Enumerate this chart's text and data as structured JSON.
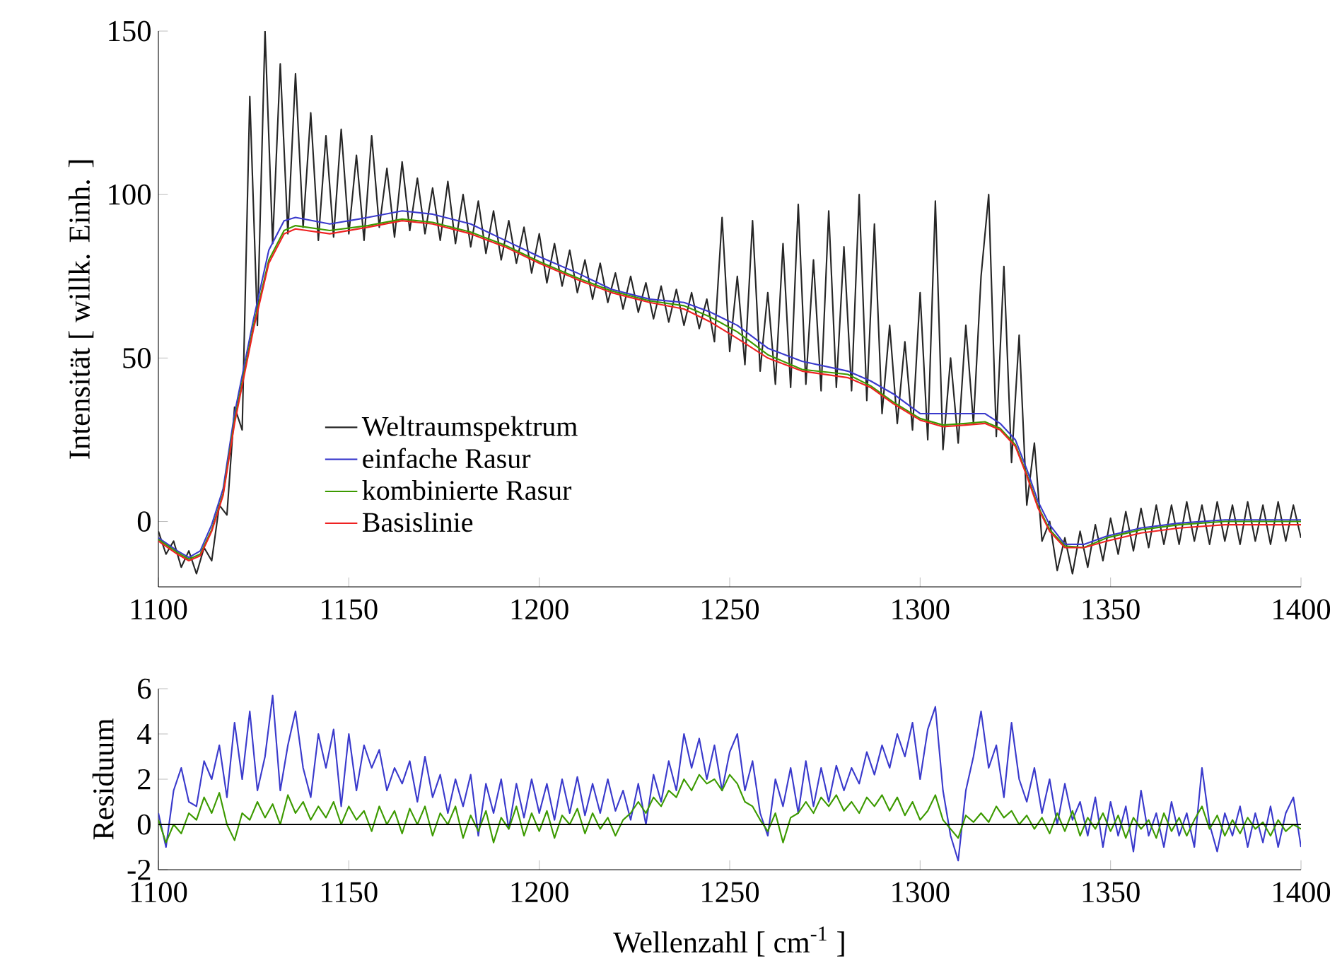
{
  "chart_data": [
    {
      "type": "line",
      "ylabel": "Intensität [ willk. Einh. ]",
      "xlim": [
        1100,
        1400
      ],
      "xticks": [
        1100,
        1150,
        1200,
        1250,
        1300,
        1350,
        1400
      ],
      "ylim": [
        -20,
        150
      ],
      "yticks": [
        0,
        50,
        100,
        150
      ],
      "legend": "left",
      "series": [
        {
          "name": "Weltraumspektrum",
          "color": "#262626",
          "x": [
            1100,
            1102,
            1104,
            1106,
            1108,
            1110,
            1112,
            1114,
            1116,
            1118,
            1120,
            1122,
            1124,
            1126,
            1128,
            1130,
            1132,
            1134,
            1136,
            1138,
            1140,
            1142,
            1144,
            1146,
            1148,
            1150,
            1152,
            1154,
            1156,
            1158,
            1160,
            1162,
            1164,
            1166,
            1168,
            1170,
            1172,
            1174,
            1176,
            1178,
            1180,
            1182,
            1184,
            1186,
            1188,
            1190,
            1192,
            1194,
            1196,
            1198,
            1200,
            1202,
            1204,
            1206,
            1208,
            1210,
            1212,
            1214,
            1216,
            1218,
            1220,
            1222,
            1224,
            1226,
            1228,
            1230,
            1232,
            1234,
            1236,
            1238,
            1240,
            1242,
            1244,
            1246,
            1248,
            1250,
            1252,
            1254,
            1256,
            1258,
            1260,
            1262,
            1264,
            1266,
            1268,
            1270,
            1272,
            1274,
            1276,
            1278,
            1280,
            1282,
            1284,
            1286,
            1288,
            1290,
            1292,
            1294,
            1296,
            1298,
            1300,
            1302,
            1304,
            1306,
            1308,
            1310,
            1312,
            1314,
            1316,
            1318,
            1320,
            1322,
            1324,
            1326,
            1328,
            1330,
            1332,
            1334,
            1336,
            1338,
            1340,
            1342,
            1344,
            1346,
            1348,
            1350,
            1352,
            1354,
            1356,
            1358,
            1360,
            1362,
            1364,
            1366,
            1368,
            1370,
            1372,
            1374,
            1376,
            1378,
            1380,
            1382,
            1384,
            1386,
            1388,
            1390,
            1392,
            1394,
            1396,
            1398,
            1400
          ],
          "values": [
            -3,
            -10,
            -6,
            -14,
            -9,
            -16,
            -8,
            -12,
            5,
            2,
            35,
            28,
            130,
            60,
            150,
            85,
            140,
            88,
            137,
            90,
            125,
            86,
            118,
            87,
            120,
            88,
            112,
            86,
            118,
            90,
            108,
            87,
            110,
            89,
            105,
            88,
            102,
            86,
            104,
            85,
            100,
            84,
            98,
            82,
            95,
            80,
            92,
            79,
            90,
            76,
            88,
            73,
            85,
            72,
            83,
            70,
            80,
            68,
            79,
            67,
            76,
            65,
            75,
            64,
            73,
            62,
            72,
            61,
            71,
            60,
            70,
            59,
            68,
            55,
            93,
            52,
            75,
            48,
            92,
            46,
            70,
            42,
            85,
            41,
            97,
            42,
            80,
            40,
            95,
            41,
            84,
            40,
            100,
            37,
            91,
            33,
            60,
            30,
            55,
            28,
            70,
            25,
            98,
            22,
            50,
            24,
            60,
            30,
            75,
            100,
            26,
            78,
            18,
            57,
            5,
            24,
            -6,
            0,
            -15,
            -5,
            -16,
            -3,
            -14,
            -1,
            -12,
            1,
            -10,
            3,
            -9,
            4,
            -8,
            5,
            -7,
            5,
            -7,
            6,
            -6,
            5,
            -7,
            6,
            -6,
            5,
            -7,
            6,
            -6,
            5,
            -7,
            6,
            -6,
            5,
            -5
          ]
        },
        {
          "name": "einfache Rasur",
          "color": "#3a3acc",
          "x": [
            1100,
            1105,
            1108,
            1111,
            1114,
            1117,
            1120,
            1125,
            1129,
            1133,
            1136,
            1145,
            1155,
            1164,
            1172,
            1182,
            1191,
            1200,
            1210,
            1219,
            1229,
            1238,
            1245,
            1252,
            1260,
            1269,
            1281,
            1287,
            1293,
            1300,
            1306,
            1312,
            1317,
            1321,
            1325,
            1328,
            1331,
            1334,
            1338,
            1343,
            1349,
            1358,
            1368,
            1380,
            1390,
            1400
          ],
          "values": [
            -5,
            -9,
            -11,
            -9,
            -1,
            10,
            33,
            62,
            83,
            92,
            93,
            91,
            93,
            95,
            94,
            91,
            86,
            81,
            76,
            71,
            68,
            67,
            64,
            60,
            53,
            49,
            46,
            43,
            39,
            33,
            33,
            33,
            33,
            30,
            25,
            16,
            6,
            -1,
            -7,
            -7,
            -4.5,
            -2,
            -0.5,
            0.5,
            0.5,
            0.5
          ]
        },
        {
          "name": "kombinierte Rasur",
          "color": "#3c9a00",
          "x": [
            1100,
            1105,
            1108,
            1111,
            1114,
            1117,
            1120,
            1125,
            1129,
            1133,
            1136,
            1145,
            1155,
            1164,
            1172,
            1182,
            1191,
            1200,
            1210,
            1219,
            1229,
            1238,
            1245,
            1252,
            1260,
            1269,
            1281,
            1287,
            1293,
            1300,
            1306,
            1312,
            1317,
            1321,
            1325,
            1328,
            1331,
            1334,
            1338,
            1343,
            1349,
            1358,
            1368,
            1380,
            1390,
            1400
          ],
          "values": [
            -5.5,
            -9.5,
            -11.5,
            -10,
            -2.5,
            8.5,
            31,
            60,
            80,
            89,
            90.5,
            89,
            90.5,
            92.5,
            91.5,
            88.5,
            84.5,
            79.5,
            74.5,
            70.5,
            67.5,
            66,
            62.5,
            58,
            51,
            46.5,
            45,
            41.5,
            36.5,
            31.5,
            29.5,
            30,
            30.5,
            28.5,
            23.5,
            14.5,
            4.5,
            -2.5,
            -7.5,
            -8,
            -5,
            -2.5,
            -1,
            0,
            0,
            0
          ]
        },
        {
          "name": "Basislinie",
          "color": "#ee2222",
          "x": [
            1100,
            1105,
            1108,
            1111,
            1114,
            1117,
            1120,
            1125,
            1129,
            1133,
            1136,
            1145,
            1155,
            1164,
            1172,
            1182,
            1191,
            1200,
            1210,
            1219,
            1229,
            1238,
            1245,
            1252,
            1260,
            1269,
            1281,
            1287,
            1293,
            1300,
            1306,
            1312,
            1317,
            1321,
            1325,
            1328,
            1331,
            1334,
            1338,
            1343,
            1349,
            1358,
            1368,
            1380,
            1390,
            1400
          ],
          "values": [
            -6,
            -10,
            -12,
            -10.5,
            -3,
            8,
            30,
            59,
            79,
            88,
            89.5,
            88,
            90,
            92,
            91,
            88,
            84,
            79,
            74,
            70,
            67,
            65,
            61,
            56,
            50,
            46,
            44,
            41,
            36,
            31,
            29,
            29.5,
            30,
            28,
            23,
            14,
            4,
            -3,
            -8,
            -8,
            -6,
            -3.5,
            -2,
            -1,
            -1,
            -1
          ]
        }
      ]
    },
    {
      "type": "line",
      "xlabel": "Wellenzahl [ cm$^{-1}$ ]",
      "ylabel": "Residuum",
      "xlim": [
        1100,
        1400
      ],
      "xticks": [
        1100,
        1150,
        1200,
        1250,
        1300,
        1350,
        1400
      ],
      "ylim": [
        -2,
        6
      ],
      "yticks": [
        -2,
        0,
        2,
        4,
        6
      ],
      "ref_lines": [
        {
          "axis": "y",
          "value": 0,
          "color": "#000000"
        }
      ],
      "x": [
        1100,
        1102,
        1104,
        1106,
        1108,
        1110,
        1112,
        1114,
        1116,
        1118,
        1120,
        1122,
        1124,
        1126,
        1128,
        1130,
        1132,
        1134,
        1136,
        1138,
        1140,
        1142,
        1144,
        1146,
        1148,
        1150,
        1152,
        1154,
        1156,
        1158,
        1160,
        1162,
        1164,
        1166,
        1168,
        1170,
        1172,
        1174,
        1176,
        1178,
        1180,
        1182,
        1184,
        1186,
        1188,
        1190,
        1192,
        1194,
        1196,
        1198,
        1200,
        1202,
        1204,
        1206,
        1208,
        1210,
        1212,
        1214,
        1216,
        1218,
        1220,
        1222,
        1224,
        1226,
        1228,
        1230,
        1232,
        1234,
        1236,
        1238,
        1240,
        1242,
        1244,
        1246,
        1248,
        1250,
        1252,
        1254,
        1256,
        1258,
        1260,
        1262,
        1264,
        1266,
        1268,
        1270,
        1272,
        1274,
        1276,
        1278,
        1280,
        1282,
        1284,
        1286,
        1288,
        1290,
        1292,
        1294,
        1296,
        1298,
        1300,
        1302,
        1304,
        1306,
        1308,
        1310,
        1312,
        1314,
        1316,
        1318,
        1320,
        1322,
        1324,
        1326,
        1328,
        1330,
        1332,
        1334,
        1336,
        1338,
        1340,
        1342,
        1344,
        1346,
        1348,
        1350,
        1352,
        1354,
        1356,
        1358,
        1360,
        1362,
        1364,
        1366,
        1368,
        1370,
        1372,
        1374,
        1376,
        1378,
        1380,
        1382,
        1384,
        1386,
        1388,
        1390,
        1392,
        1394,
        1396,
        1398,
        1400
      ],
      "series": [
        {
          "color": "#3a3acc",
          "values": [
            0.5,
            -1.0,
            1.5,
            2.5,
            1.0,
            0.8,
            2.8,
            2.0,
            3.5,
            1.2,
            4.5,
            2.0,
            5.0,
            1.5,
            3.0,
            5.7,
            1.5,
            3.5,
            5.0,
            2.5,
            1.2,
            4.0,
            2.5,
            4.2,
            0.8,
            4.0,
            1.5,
            3.5,
            2.5,
            3.3,
            1.5,
            2.5,
            1.8,
            2.8,
            1.0,
            3.0,
            1.2,
            2.2,
            0.5,
            2.0,
            0.8,
            2.2,
            -0.5,
            1.8,
            0.5,
            2.0,
            -0.2,
            1.8,
            0.3,
            2.0,
            0.5,
            1.8,
            0.2,
            2.0,
            0.5,
            2.1,
            0.4,
            1.8,
            0.5,
            2.0,
            0.6,
            1.5,
            0.2,
            1.8,
            0.0,
            2.2,
            1.0,
            2.8,
            1.5,
            4.0,
            2.5,
            3.8,
            2.0,
            3.5,
            1.5,
            3.2,
            4.0,
            1.5,
            2.8,
            0.5,
            -0.5,
            2.0,
            0.8,
            2.5,
            0.5,
            2.8,
            0.8,
            2.5,
            1.0,
            2.6,
            1.5,
            2.5,
            1.8,
            3.2,
            2.2,
            3.5,
            2.5,
            4.0,
            3.0,
            4.5,
            2.0,
            4.2,
            5.2,
            1.5,
            -0.5,
            -1.6,
            1.5,
            3.0,
            5.0,
            2.5,
            3.5,
            1.2,
            4.5,
            2.0,
            1.0,
            2.5,
            0.5,
            2.0,
            0.0,
            1.8,
            0.2,
            1.0,
            -0.5,
            1.2,
            -1.0,
            1.0,
            -0.5,
            0.8,
            -1.2,
            1.5,
            -0.5,
            0.5,
            -1.0,
            1.0,
            -0.5,
            0.5,
            -1.0,
            2.5,
            0.0,
            -1.2,
            0.5,
            -0.5,
            0.8,
            -1.0,
            0.5,
            -0.8,
            0.8,
            -1.0,
            0.5,
            1.2,
            -1.0
          ]
        },
        {
          "color": "#3c9a00",
          "values": [
            0.2,
            -0.8,
            0.0,
            -0.4,
            0.5,
            0.2,
            1.2,
            0.5,
            1.4,
            0.0,
            -0.7,
            0.5,
            0.2,
            1.0,
            0.3,
            0.9,
            0.0,
            1.3,
            0.5,
            1.0,
            0.2,
            0.8,
            0.3,
            1.0,
            0.0,
            0.8,
            0.2,
            0.6,
            -0.3,
            0.8,
            0.0,
            0.6,
            -0.4,
            0.7,
            0.0,
            0.8,
            -0.5,
            0.5,
            0.0,
            0.8,
            -0.6,
            0.4,
            -0.3,
            0.6,
            -0.8,
            0.3,
            -0.2,
            0.8,
            -0.5,
            0.5,
            -0.3,
            0.6,
            -0.6,
            0.4,
            0.0,
            0.7,
            -0.4,
            0.5,
            -0.2,
            0.3,
            -0.5,
            0.2,
            0.5,
            1.0,
            0.5,
            1.2,
            0.8,
            1.5,
            1.2,
            2.0,
            1.5,
            2.2,
            1.8,
            2.0,
            1.5,
            2.2,
            1.8,
            1.0,
            0.8,
            0.2,
            -0.3,
            0.5,
            -0.8,
            0.3,
            0.5,
            1.0,
            0.5,
            1.2,
            0.8,
            1.3,
            0.6,
            1.0,
            0.5,
            1.2,
            0.8,
            1.3,
            0.6,
            1.2,
            0.4,
            1.0,
            0.2,
            0.6,
            1.3,
            0.2,
            -0.2,
            -0.6,
            0.4,
            0.1,
            0.5,
            0.1,
            0.8,
            0.3,
            0.6,
            0.0,
            0.4,
            -0.2,
            0.3,
            -0.4,
            0.5,
            -0.3,
            0.6,
            -0.5,
            0.3,
            -0.2,
            0.5,
            -0.3,
            0.4,
            -0.6,
            0.3,
            -0.2,
            0.2,
            -0.6,
            0.5,
            -0.3,
            0.3,
            -0.5,
            0.2,
            0.8,
            -0.2,
            0.4,
            -0.5,
            0.2,
            -0.4,
            0.3,
            -0.2,
            0.1,
            -0.5,
            0.2,
            -0.3,
            0.0,
            -0.2
          ]
        }
      ]
    }
  ]
}
